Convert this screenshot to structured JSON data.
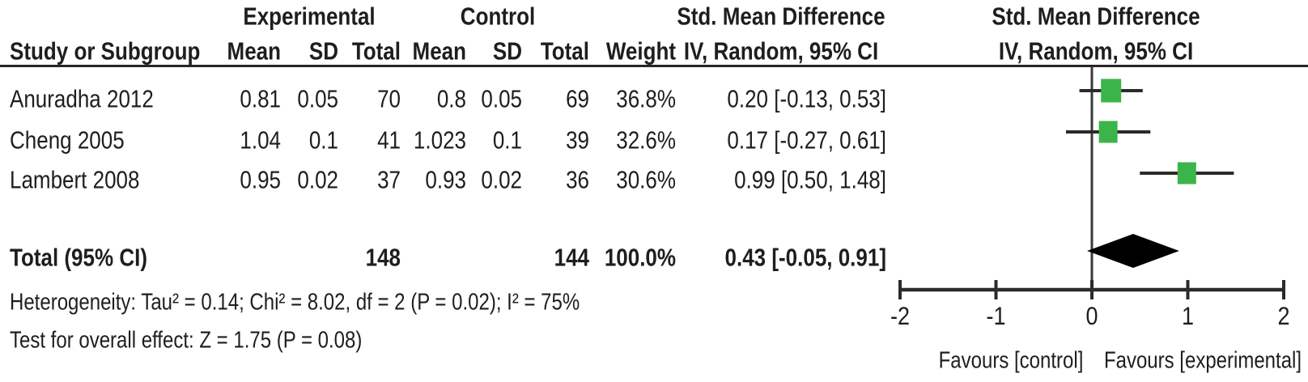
{
  "figure": {
    "header": {
      "group_experimental": "Experimental",
      "group_control": "Control",
      "smd_text_col_line1": "Std. Mean Difference",
      "smd_text_col_line2": "IV, Random, 95% CI",
      "smd_plot_col_line1": "Std. Mean Difference",
      "smd_plot_col_line2": "IV, Random, 95% CI",
      "study": "Study or Subgroup",
      "mean_exp": "Mean",
      "sd_exp": "SD",
      "total_exp": "Total",
      "mean_ctl": "Mean",
      "sd_ctl": "SD",
      "total_ctl": "Total",
      "weight": "Weight"
    },
    "rows": [
      {
        "name": "Anuradha 2012",
        "mean_e": "0.81",
        "sd_e": "0.05",
        "total_e": "70",
        "mean_c": "0.8",
        "sd_c": "0.05",
        "total_c": "69",
        "weight": "36.8%",
        "ci": "0.20 [-0.13, 0.53]"
      },
      {
        "name": "Cheng 2005",
        "mean_e": "1.04",
        "sd_e": "0.1",
        "total_e": "41",
        "mean_c": "1.023",
        "sd_c": "0.1",
        "total_c": "39",
        "weight": "32.6%",
        "ci": "0.17 [-0.27, 0.61]"
      },
      {
        "name": "Lambert 2008",
        "mean_e": "0.95",
        "sd_e": "0.02",
        "total_e": "37",
        "mean_c": "0.93",
        "sd_c": "0.02",
        "total_c": "36",
        "weight": "30.6%",
        "ci": "0.99 [0.50, 1.48]"
      }
    ],
    "total_row": {
      "label": "Total (95% CI)",
      "total_e": "148",
      "total_c": "144",
      "weight": "100.0%",
      "ci": "0.43 [-0.05, 0.91]"
    },
    "footnotes": {
      "heterogeneity": "Heterogeneity: Tau² = 0.14; Chi² = 8.02, df = 2 (P = 0.02); I² = 75%",
      "overall_effect": "Test for overall effect: Z = 1.75 (P = 0.08)"
    }
  },
  "chart_data": {
    "type": "forest",
    "effect_measure": "Std. Mean Difference",
    "method": "IV, Random, 95% CI",
    "studies": [
      {
        "label": "Anuradha 2012",
        "mean_exp": 0.81,
        "sd_exp": 0.05,
        "n_exp": 70,
        "mean_ctl": 0.8,
        "sd_ctl": 0.05,
        "n_ctl": 69,
        "weight_pct": 36.8,
        "smd": 0.2,
        "ci_low": -0.13,
        "ci_high": 0.53
      },
      {
        "label": "Cheng 2005",
        "mean_exp": 1.04,
        "sd_exp": 0.1,
        "n_exp": 41,
        "mean_ctl": 1.023,
        "sd_ctl": 0.1,
        "n_ctl": 39,
        "weight_pct": 32.6,
        "smd": 0.17,
        "ci_low": -0.27,
        "ci_high": 0.61
      },
      {
        "label": "Lambert 2008",
        "mean_exp": 0.95,
        "sd_exp": 0.02,
        "n_exp": 37,
        "mean_ctl": 0.93,
        "sd_ctl": 0.02,
        "n_ctl": 36,
        "weight_pct": 30.6,
        "smd": 0.99,
        "ci_low": 0.5,
        "ci_high": 1.48
      }
    ],
    "overall": {
      "label": "Total (95% CI)",
      "n_exp": 148,
      "n_ctl": 144,
      "weight_pct": 100.0,
      "smd": 0.43,
      "ci_low": -0.05,
      "ci_high": 0.91
    },
    "heterogeneity": "Heterogeneity: Tau² = 0.14; Chi² = 8.02, df = 2 (P = 0.02); I² = 75%",
    "overall_effect_test": "Test for overall effect: Z = 1.75 (P = 0.08)",
    "axis": {
      "min": -2,
      "max": 2,
      "ticks": [
        -2,
        -1,
        0,
        1,
        2
      ],
      "left_label": "Favours [control]",
      "right_label": "Favours [experimental]"
    },
    "layout_hint": {
      "grid": false,
      "zero_line": true
    },
    "colors": {
      "marker_green": "#3bb54a",
      "diamond": "#000000",
      "line": "#2b2b2b"
    }
  }
}
